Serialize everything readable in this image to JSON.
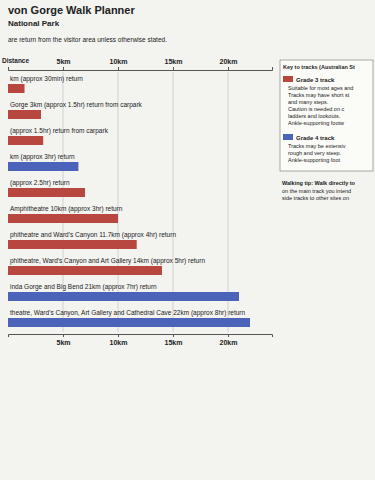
{
  "chart_data": {
    "type": "bar",
    "orientation": "horizontal",
    "grid": true,
    "title": "von Gorge Walk Planner",
    "subtitle": "National Park",
    "note": "are return from the visitor area unless otherwise stated.",
    "x_label": "Distance",
    "categories": [
      "km (approx 30min) return",
      "Gorge 3km (approx 1.5hr) return from carpark",
      "(approx 1.5hr) return from carpark",
      "km (approx 3hr) return",
      "(approx 2.5hr) return",
      "Amphitheatre 10km (approx 3hr) return",
      "phitheatre and Ward's Canyon 11.7km (approx 4hr) return",
      "phitheatre, Ward's Canyon and Art Gallery 14km (approx 5hr) return",
      "inda Gorge and Big Bend 21km (approx 7hr) return",
      "theatre, Ward's Canyon, Art Gallery and Cathedral Cave 22km (approx 8hr) return"
    ],
    "series": [
      {
        "name": "Grade 3 track",
        "color": "#b8473f",
        "values": [
          1.5,
          3,
          3.2,
          null,
          7,
          10,
          11.7,
          14,
          null,
          null
        ]
      },
      {
        "name": "Grade 4 track",
        "color": "#4b63b8",
        "values": [
          null,
          null,
          null,
          6.4,
          null,
          null,
          null,
          null,
          21,
          22
        ]
      }
    ],
    "xlim": [
      0,
      24
    ],
    "xticks": [
      {
        "value": 5,
        "label": "5km"
      },
      {
        "value": 10,
        "label": "10km"
      },
      {
        "value": 15,
        "label": "15km"
      },
      {
        "value": 20,
        "label": "20km"
      }
    ],
    "key": {
      "title": "Key to tracks (Australian St",
      "notes": [
        [
          "Suitable for most ages and",
          "Tracks may have short st",
          "and many steps.",
          "Caution is needed on c",
          "ladders and lookouts.",
          "Ankle-supporting footw"
        ],
        [
          "Tracks may be extensiv",
          "rough and very steep.",
          "Ankle-supporting foot"
        ]
      ]
    },
    "walking_tip": [
      "Walking tip: Walk directly to",
      "on the main track you intend",
      "side tracks to other sites on"
    ]
  }
}
